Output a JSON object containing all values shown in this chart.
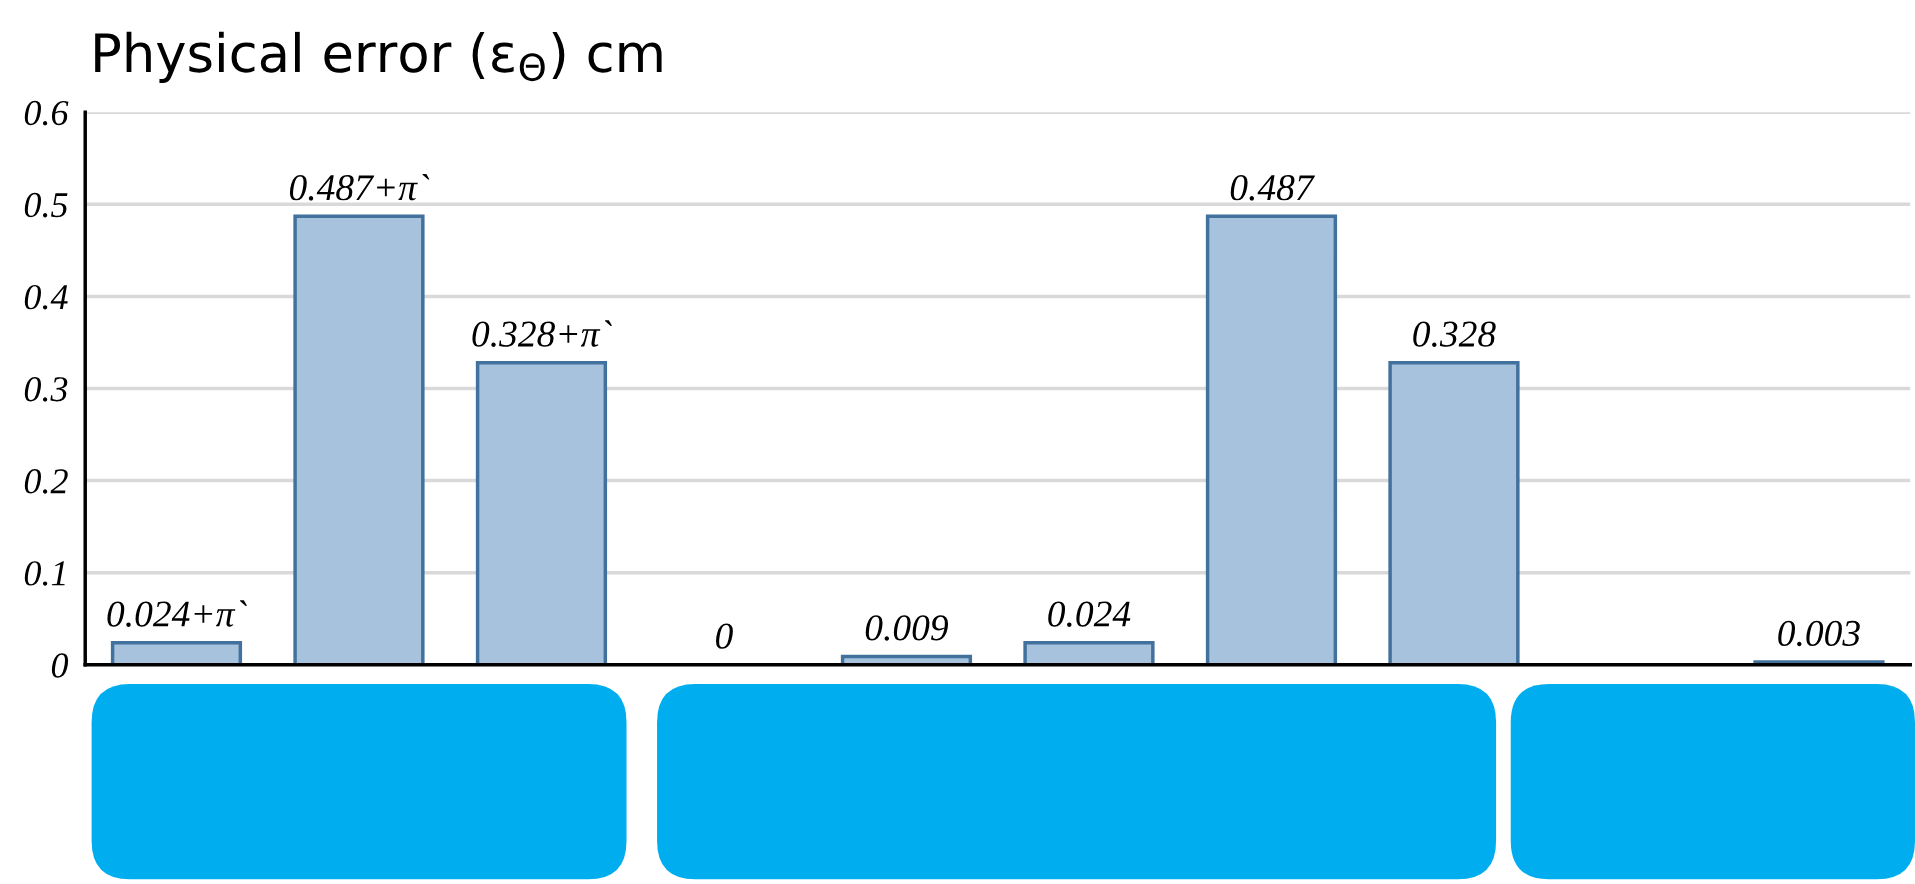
{
  "chart_data": {
    "type": "bar",
    "title": "Physical error (ε$_{Θ}$) cm",
    "categories": [
      null,
      null,
      null,
      null,
      null,
      null,
      null,
      null,
      null,
      null
    ],
    "values": [
      0.024,
      0.487,
      0.328,
      0,
      0.009,
      0.024,
      0.487,
      0.328,
      null,
      0.003
    ],
    "value_labels": [
      "0.024+π`",
      "0.487+π`",
      "0.328+π`",
      "0",
      "0.009",
      "0.024",
      "0.487",
      "0.328",
      null,
      "0.003"
    ],
    "color": "#a7c2dd",
    "ylim": [
      0,
      0.6
    ],
    "yticks": [
      0,
      0.1,
      0.2,
      0.3,
      0.4,
      0.5,
      0.6
    ],
    "grid": "y",
    "tick_labels": "y"
  }
}
